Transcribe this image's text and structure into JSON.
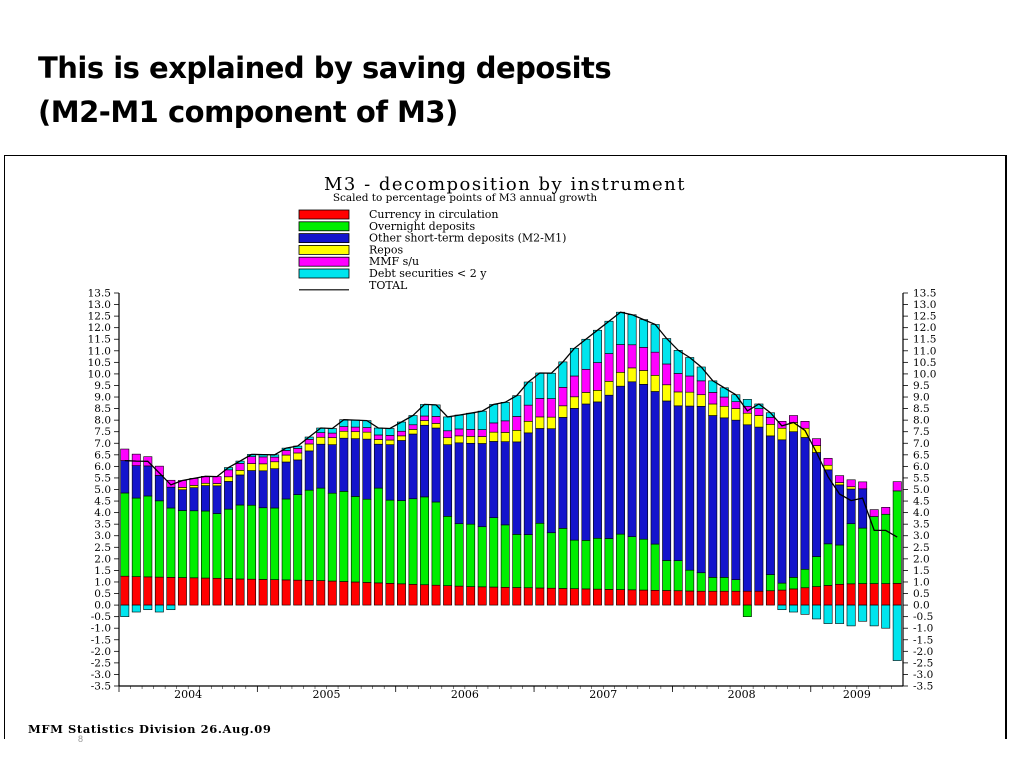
{
  "slide": {
    "title_line1": "This is explained by saving deposits",
    "title_line2": "(M2-M1 component of M3)",
    "page_number": "8"
  },
  "footer": "MFM Statistics Division 26.Aug.09",
  "chart_data": {
    "type": "bar",
    "stacked": true,
    "title": "M3 - decomposition by instrument",
    "subtitle": "Scaled to percentage points of M3 annual growth",
    "ylim": [
      -3.5,
      13.5
    ],
    "y_ticks": [
      "13.5",
      "13.0",
      "12.5",
      "12.0",
      "11.5",
      "11.0",
      "10.5",
      "10.0",
      "9.5",
      "9.0",
      "8.5",
      "8.0",
      "7.5",
      "7.0",
      "6.5",
      "6.0",
      "5.5",
      "5.0",
      "4.5",
      "4.0",
      "3.5",
      "3.0",
      "2.5",
      "2.0",
      "1.5",
      "1.0",
      "0.5",
      "0.0",
      "-0.5",
      "-1.0",
      "-1.5",
      "-2.0",
      "-2.5",
      "-3.0",
      "-3.5"
    ],
    "x_tick_labels": [
      "2004",
      "2005",
      "2006",
      "2007",
      "2008",
      "2009"
    ],
    "legend_position": "top",
    "grid": false,
    "colors": {
      "currency": "#ff0000",
      "overnight": "#00ee00",
      "other_short": "#1414cc",
      "repos": "#ffff00",
      "mmf": "#ff00ff",
      "debt": "#00e5ee",
      "total": "#000000"
    },
    "series": [
      {
        "key": "currency",
        "name": "Currency in circulation",
        "values": [
          1.25,
          1.23,
          1.22,
          1.21,
          1.2,
          1.19,
          1.18,
          1.17,
          1.16,
          1.15,
          1.13,
          1.12,
          1.11,
          1.1,
          1.09,
          1.08,
          1.07,
          1.06,
          1.04,
          1.02,
          1.0,
          0.98,
          0.96,
          0.94,
          0.92,
          0.9,
          0.88,
          0.86,
          0.84,
          0.82,
          0.8,
          0.79,
          0.78,
          0.77,
          0.76,
          0.75,
          0.74,
          0.73,
          0.72,
          0.71,
          0.7,
          0.69,
          0.68,
          0.67,
          0.66,
          0.65,
          0.64,
          0.63,
          0.62,
          0.61,
          0.6,
          0.6,
          0.6,
          0.6,
          0.6,
          0.6,
          0.62,
          0.65,
          0.7,
          0.75,
          0.8,
          0.85,
          0.9,
          0.92,
          0.93,
          0.93,
          0.93,
          0.94
        ]
      },
      {
        "key": "overnight",
        "name": "Overnight deposits",
        "values": [
          3.6,
          3.4,
          3.5,
          3.3,
          3.0,
          2.9,
          2.9,
          2.9,
          2.8,
          3.0,
          3.2,
          3.2,
          3.1,
          3.1,
          3.5,
          3.7,
          3.9,
          4.0,
          3.8,
          3.9,
          3.7,
          3.6,
          4.1,
          3.6,
          3.6,
          3.7,
          3.8,
          3.6,
          3.0,
          2.7,
          2.7,
          2.6,
          3.0,
          2.7,
          2.3,
          2.3,
          2.8,
          2.4,
          2.6,
          2.1,
          2.1,
          2.2,
          2.2,
          2.4,
          2.3,
          2.2,
          2.0,
          1.3,
          1.3,
          0.9,
          0.8,
          0.6,
          0.6,
          0.5,
          -0.5,
          0.0,
          0.7,
          0.3,
          0.5,
          0.8,
          1.3,
          1.8,
          1.7,
          2.6,
          2.4,
          2.9,
          3.0,
          4.0
        ]
      },
      {
        "key": "other_short",
        "name": "Other short-term deposits (M2-M1)",
        "values": [
          1.4,
          1.4,
          1.3,
          1.1,
          0.9,
          0.9,
          1.0,
          1.1,
          1.2,
          1.2,
          1.3,
          1.5,
          1.6,
          1.7,
          1.6,
          1.5,
          1.7,
          1.9,
          2.1,
          2.3,
          2.5,
          2.6,
          1.9,
          2.4,
          2.6,
          2.8,
          3.1,
          3.2,
          3.1,
          3.5,
          3.5,
          3.6,
          3.3,
          3.6,
          4.0,
          4.4,
          4.1,
          4.5,
          4.8,
          5.7,
          5.9,
          5.9,
          6.2,
          6.4,
          6.7,
          6.7,
          6.6,
          6.9,
          6.7,
          7.1,
          7.2,
          7.0,
          6.9,
          6.9,
          7.2,
          7.1,
          6.0,
          6.2,
          6.3,
          5.7,
          4.5,
          3.2,
          2.6,
          1.5,
          1.7,
          0.0,
          0.0,
          0.0
        ]
      },
      {
        "key": "repos",
        "name": "Repos",
        "values": [
          0.0,
          0.0,
          0.0,
          0.0,
          0.0,
          0.1,
          0.1,
          0.1,
          0.1,
          0.2,
          0.2,
          0.3,
          0.3,
          0.3,
          0.3,
          0.3,
          0.3,
          0.3,
          0.3,
          0.3,
          0.3,
          0.3,
          0.2,
          0.2,
          0.2,
          0.2,
          0.2,
          0.2,
          0.3,
          0.3,
          0.3,
          0.3,
          0.4,
          0.4,
          0.5,
          0.5,
          0.5,
          0.5,
          0.5,
          0.5,
          0.5,
          0.5,
          0.6,
          0.6,
          0.6,
          0.6,
          0.7,
          0.7,
          0.6,
          0.6,
          0.5,
          0.5,
          0.5,
          0.5,
          0.5,
          0.5,
          0.5,
          0.5,
          0.4,
          0.4,
          0.3,
          0.2,
          0.1,
          0.1,
          0.0,
          0.0,
          0.0,
          0.0
        ]
      },
      {
        "key": "mmf",
        "name": "MMF s/u",
        "values": [
          0.5,
          0.5,
          0.4,
          0.4,
          0.3,
          0.3,
          0.3,
          0.3,
          0.3,
          0.3,
          0.3,
          0.3,
          0.3,
          0.2,
          0.2,
          0.2,
          0.2,
          0.2,
          0.2,
          0.2,
          0.2,
          0.2,
          0.2,
          0.2,
          0.2,
          0.2,
          0.2,
          0.3,
          0.3,
          0.3,
          0.3,
          0.3,
          0.4,
          0.5,
          0.6,
          0.7,
          0.8,
          0.8,
          0.8,
          0.9,
          1.0,
          1.2,
          1.2,
          1.2,
          1.0,
          1.0,
          1.0,
          0.9,
          0.8,
          0.7,
          0.6,
          0.5,
          0.4,
          0.3,
          0.3,
          0.3,
          0.3,
          0.3,
          0.3,
          0.3,
          0.3,
          0.3,
          0.3,
          0.3,
          0.3,
          0.3,
          0.3,
          0.4
        ]
      },
      {
        "key": "debt",
        "name": "Debt securities < 2 y",
        "values": [
          -0.5,
          -0.3,
          -0.2,
          -0.3,
          -0.2,
          0.0,
          0.0,
          0.0,
          0.0,
          0.1,
          0.1,
          0.1,
          0.1,
          0.1,
          0.1,
          0.1,
          0.1,
          0.2,
          0.2,
          0.3,
          0.3,
          0.3,
          0.3,
          0.3,
          0.4,
          0.4,
          0.5,
          0.5,
          0.6,
          0.6,
          0.7,
          0.8,
          0.8,
          0.8,
          0.9,
          1.0,
          1.1,
          1.1,
          1.1,
          1.2,
          1.3,
          1.4,
          1.4,
          1.4,
          1.3,
          1.2,
          1.2,
          1.1,
          1.0,
          0.8,
          0.6,
          0.5,
          0.4,
          0.3,
          0.3,
          0.2,
          0.2,
          -0.2,
          -0.3,
          -0.4,
          -0.6,
          -0.8,
          -0.8,
          -0.9,
          -0.7,
          -0.9,
          -1.0,
          -2.4
        ]
      }
    ]
  }
}
